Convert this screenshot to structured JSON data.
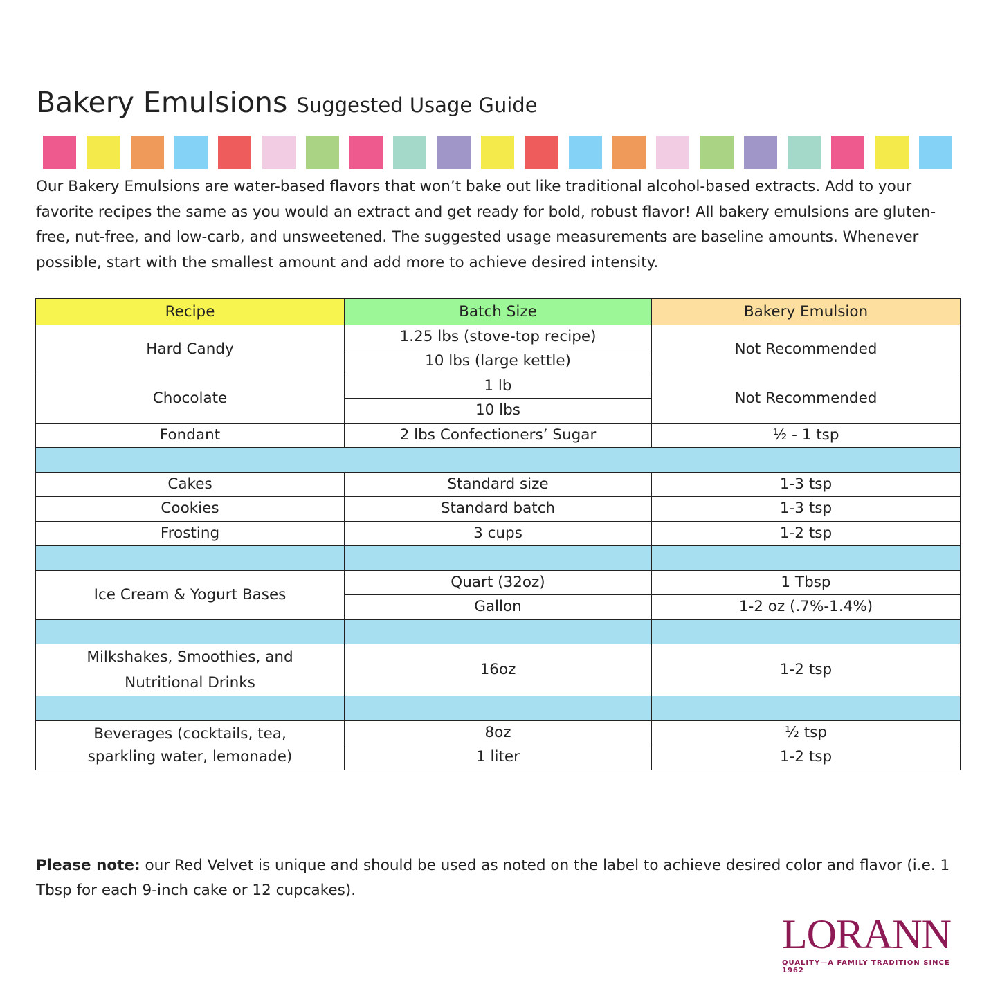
{
  "title": {
    "main": "Bakery Emulsions",
    "sub": "Suggested Usage Guide"
  },
  "swatch_colors": [
    "#ee5a8e",
    "#f4ea4c",
    "#ef9a5a",
    "#84d2f6",
    "#ee5c5c",
    "#f2cce2",
    "#abd384",
    "#ee5a8e",
    "#a4d9c9",
    "#a096c8",
    "#f4ea4c",
    "#ee5c5c",
    "#84d2f6",
    "#ef9a5a",
    "#f2cce2",
    "#abd384",
    "#a096c8",
    "#a4d9c9",
    "#ee5a8e",
    "#f4ea4c",
    "#84d2f6"
  ],
  "intro": "Our Bakery Emulsions are water-based flavors that won’t bake out like traditional alcohol-based extracts. Add to your favorite recipes the same as you would an extract and get ready for bold, robust flavor! All bakery emulsions are gluten-free, nut-free, and low-carb, and unsweetened. The suggested usage measurements are baseline amounts. Whenever possible, start with the smallest amount and add more to achieve desired intensity.",
  "table": {
    "headers": [
      "Recipe",
      "Batch Size",
      "Bakery Emulsion"
    ],
    "header_colors": [
      "#f7f450",
      "#9cf797",
      "#fde0a0"
    ],
    "separator_color": "#a8dff0",
    "hard_candy": {
      "recipe": "Hard Candy",
      "batch": [
        "1.25 lbs (stove-top recipe)",
        "10 lbs (large kettle)"
      ],
      "emulsion": "Not Recommended"
    },
    "chocolate": {
      "recipe": "Chocolate",
      "batch": [
        "1 lb",
        "10 lbs"
      ],
      "emulsion": "Not Recommended"
    },
    "fondant": {
      "recipe": "Fondant",
      "batch": "2 lbs Confectioners’ Sugar",
      "emulsion": "½ - 1 tsp"
    },
    "cakes": {
      "recipe": "Cakes",
      "batch": "Standard size",
      "emulsion": "1-3 tsp"
    },
    "cookies": {
      "recipe": "Cookies",
      "batch": "Standard batch",
      "emulsion": "1-3 tsp"
    },
    "frosting": {
      "recipe": "Frosting",
      "batch": "3 cups",
      "emulsion": "1-2 tsp"
    },
    "ice_cream": {
      "recipe": "Ice Cream & Yogurt Bases",
      "batch": [
        "Quart (32oz)",
        "Gallon"
      ],
      "emulsion": [
        "1 Tbsp",
        "1-2 oz (.7%-1.4%)"
      ]
    },
    "milkshakes": {
      "recipe_lines": [
        "Milkshakes, Smoothies, and",
        "Nutritional Drinks"
      ],
      "batch": "16oz",
      "emulsion": "1-2 tsp"
    },
    "beverages": {
      "recipe_lines": [
        "Beverages (cocktails, tea,",
        "sparkling water, lemonade)"
      ],
      "batch": [
        "8oz",
        "1 liter"
      ],
      "emulsion": [
        "½ tsp",
        "1-2 tsp"
      ]
    }
  },
  "note": {
    "bold": "Please note:",
    "text": " our Red Velvet is unique and should be used as noted on the label to achieve desired color and flavor (i.e. 1 Tbsp for each 9-inch cake or 12 cupcakes)."
  },
  "logo": {
    "name": "LORANN",
    "tagline": "QUALITY—A FAMILY TRADITION SINCE 1962"
  }
}
